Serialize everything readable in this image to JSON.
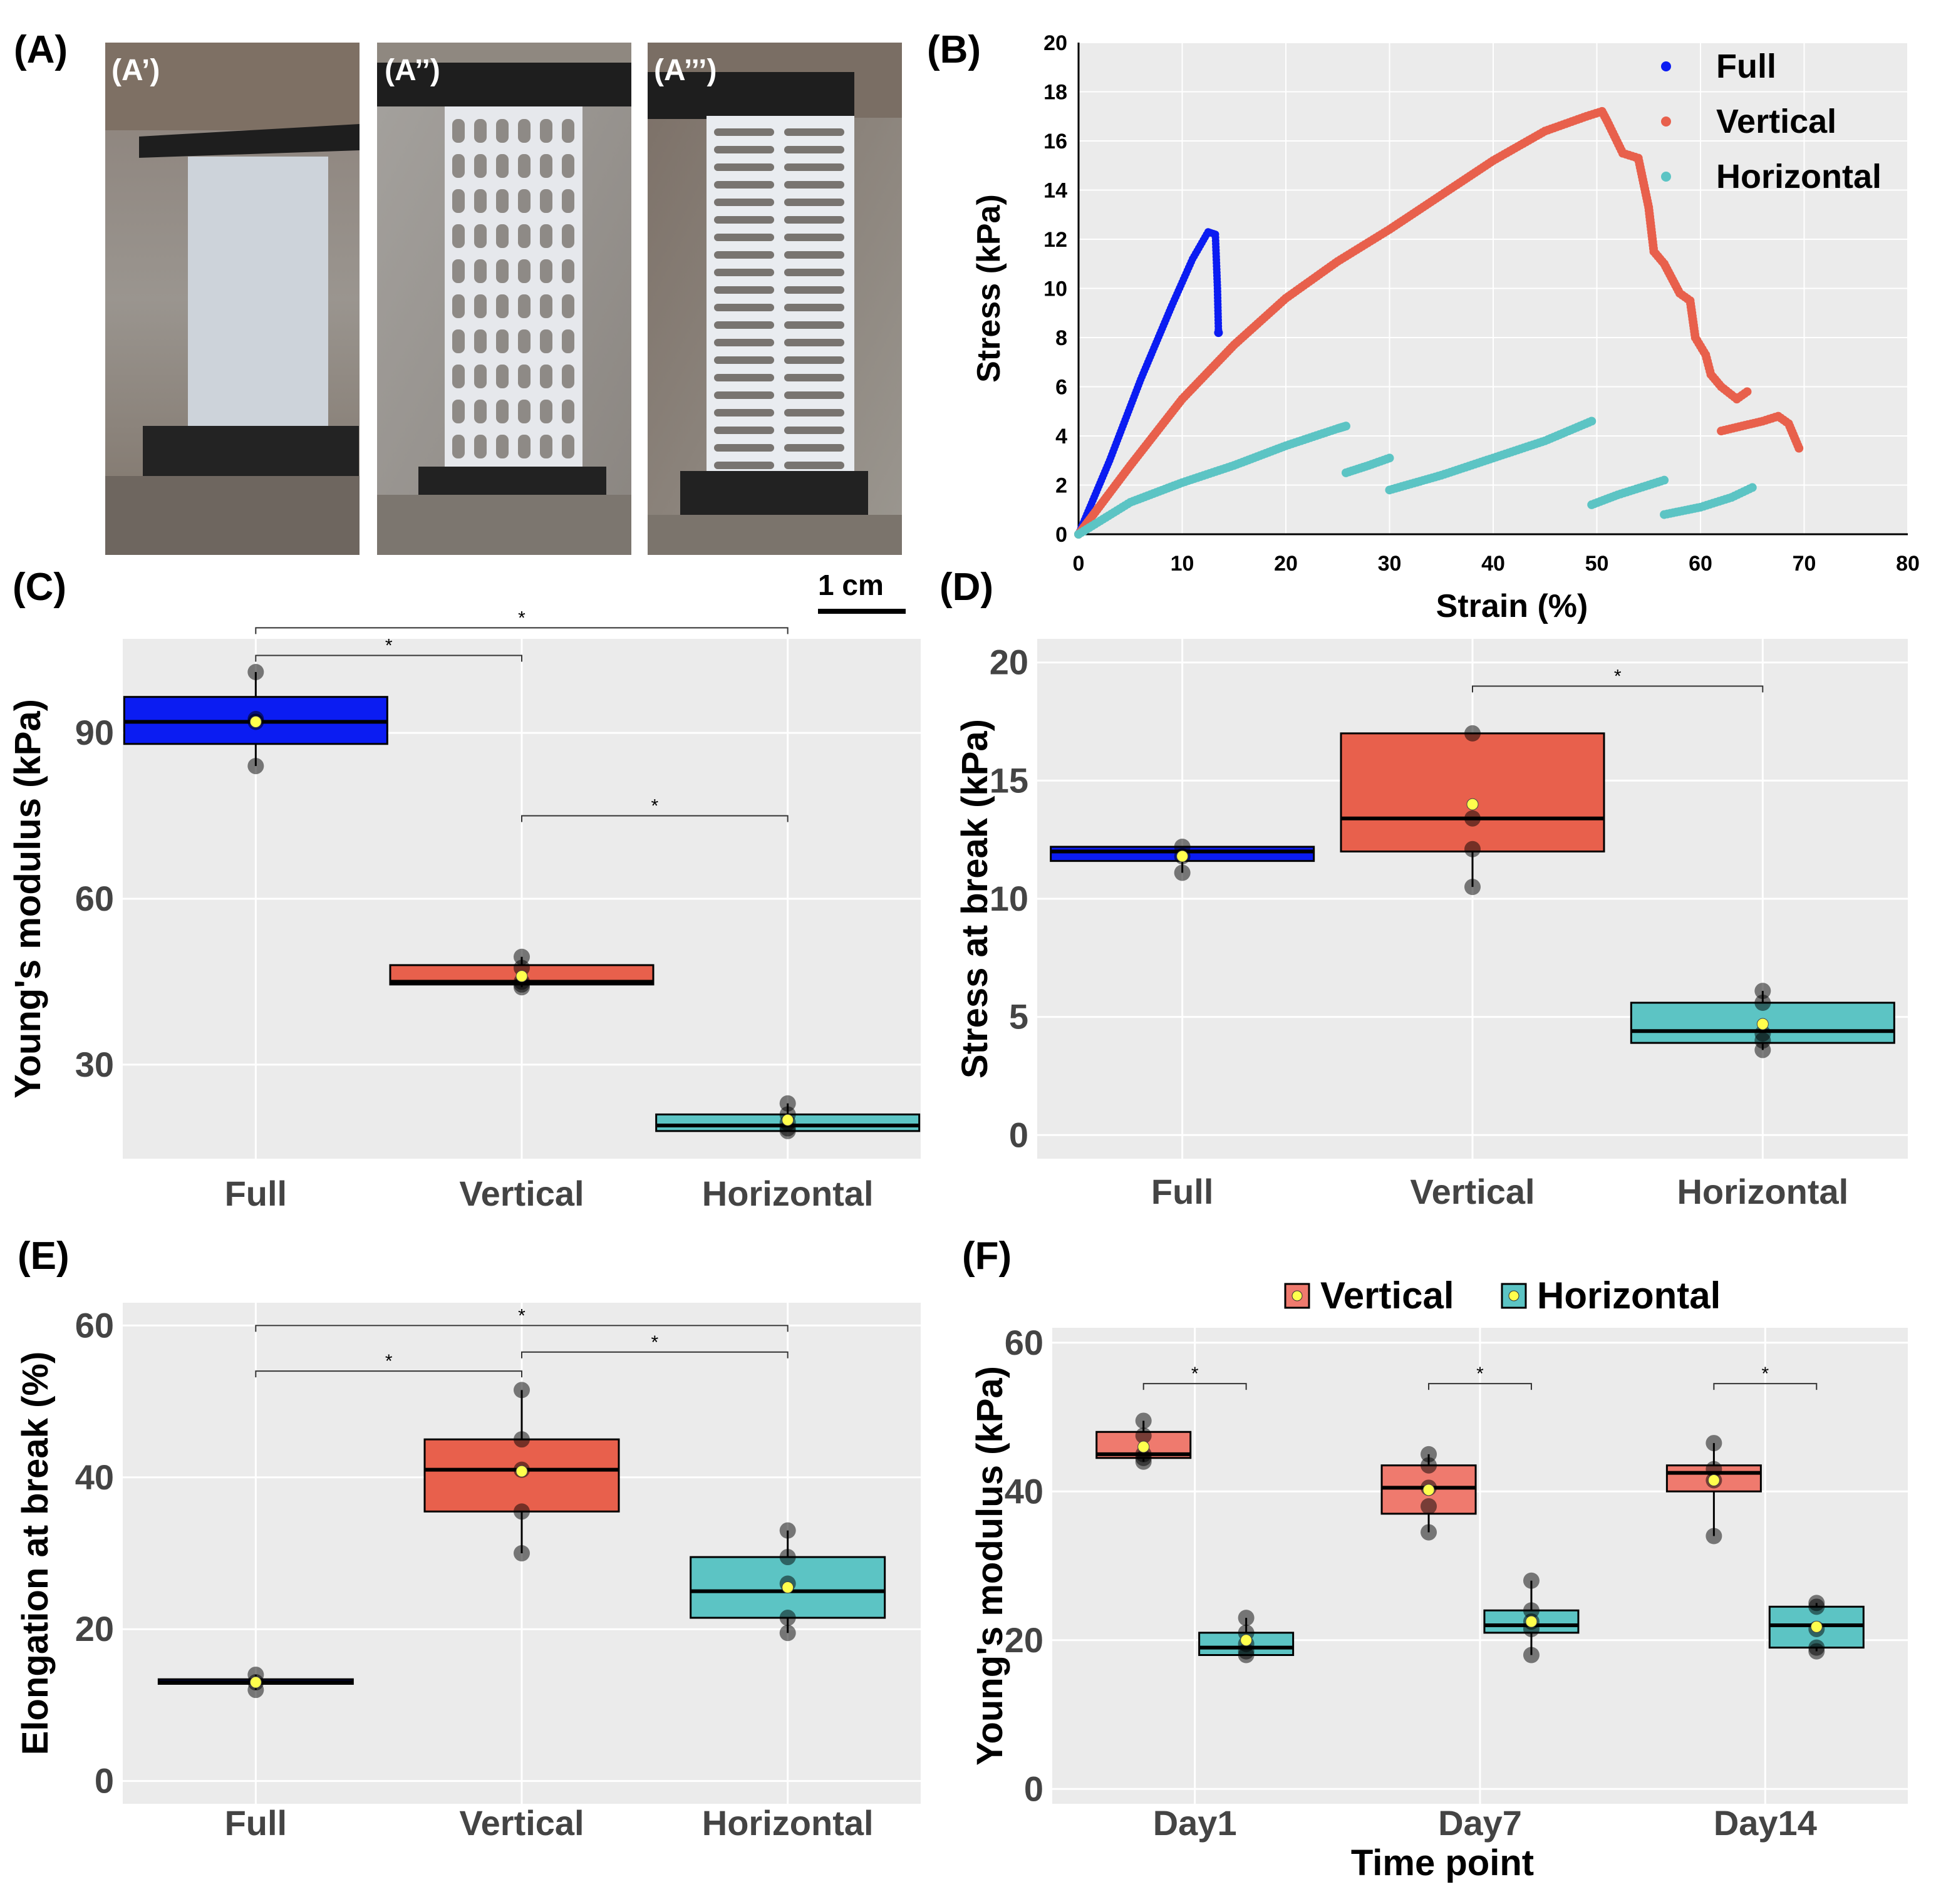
{
  "panel_labels": {
    "A": "(A)",
    "B": "(B)",
    "C": "(C)",
    "D": "(D)",
    "E": "(E)",
    "F": "(F)"
  },
  "photos": {
    "labels": [
      "(A’)",
      "(A’’)",
      "(A’’’)"
    ],
    "scale_bar": "1 cm"
  },
  "colors": {
    "full": "#0b1cf2",
    "vertical": "#e8604c",
    "horizontal": "#5cc4c4",
    "vertical_f": "#ef7a6e",
    "panel_bg": "#ebebeb",
    "grid": "#ffffff"
  },
  "chart_data": [
    {
      "id": "B",
      "type": "scatter",
      "xlabel": "Strain (%)",
      "ylabel": "Stress (kPa)",
      "xlim": [
        0,
        80
      ],
      "ylim": [
        0,
        20
      ],
      "xticks": [
        "0",
        "10",
        "20",
        "30",
        "40",
        "50",
        "60",
        "70",
        "80"
      ],
      "yticks": [
        "0",
        "2",
        "4",
        "6",
        "8",
        "10",
        "12",
        "14",
        "16",
        "18",
        "20"
      ],
      "legend": [
        "Full",
        "Vertical",
        "Horizontal"
      ],
      "series": [
        {
          "name": "Full",
          "segments": [
            [
              [
                0,
                0
              ],
              [
                3,
                3
              ],
              [
                6,
                6.3
              ],
              [
                9,
                9.3
              ],
              [
                11,
                11.2
              ],
              [
                12.5,
                12.3
              ],
              [
                13.2,
                12.2
              ],
              [
                13.4,
                10
              ],
              [
                13.5,
                8.2
              ]
            ]
          ]
        },
        {
          "name": "Vertical",
          "segments": [
            [
              [
                0,
                0
              ],
              [
                5,
                2.8
              ],
              [
                10,
                5.5
              ],
              [
                15,
                7.7
              ],
              [
                20,
                9.6
              ],
              [
                25,
                11.1
              ],
              [
                30,
                12.4
              ],
              [
                35,
                13.8
              ],
              [
                40,
                15.2
              ],
              [
                45,
                16.4
              ],
              [
                49,
                17.0
              ],
              [
                50.5,
                17.2
              ],
              [
                51,
                16.8
              ],
              [
                52.5,
                15.5
              ],
              [
                54,
                15.3
              ],
              [
                55,
                13.3
              ],
              [
                55.5,
                11.5
              ],
              [
                56.5,
                11
              ],
              [
                58,
                9.8
              ],
              [
                59,
                9.5
              ],
              [
                59.5,
                8
              ],
              [
                60.5,
                7.3
              ],
              [
                61,
                6.5
              ],
              [
                62,
                6
              ],
              [
                63.5,
                5.5
              ],
              [
                64.5,
                5.8
              ]
            ],
            [
              [
                62,
                4.2
              ],
              [
                64,
                4.4
              ],
              [
                66,
                4.6
              ],
              [
                67.5,
                4.8
              ],
              [
                68.5,
                4.5
              ],
              [
                69.5,
                3.5
              ]
            ]
          ]
        },
        {
          "name": "Horizontal",
          "segments": [
            [
              [
                0,
                0
              ],
              [
                5,
                1.3
              ],
              [
                10,
                2.1
              ],
              [
                15,
                2.8
              ],
              [
                20,
                3.6
              ],
              [
                25,
                4.3
              ],
              [
                25.8,
                4.4
              ]
            ],
            [
              [
                25.8,
                2.5
              ],
              [
                28,
                2.8
              ],
              [
                30,
                3.1
              ]
            ],
            [
              [
                30,
                1.8
              ],
              [
                35,
                2.4
              ],
              [
                40,
                3.1
              ],
              [
                45,
                3.8
              ],
              [
                49.5,
                4.6
              ]
            ],
            [
              [
                49.5,
                1.2
              ],
              [
                52,
                1.6
              ],
              [
                55,
                2.0
              ],
              [
                56.5,
                2.2
              ]
            ],
            [
              [
                56.5,
                0.8
              ],
              [
                60,
                1.1
              ],
              [
                63,
                1.5
              ],
              [
                65,
                1.9
              ]
            ]
          ]
        }
      ]
    },
    {
      "id": "C",
      "type": "box",
      "ylabel": "Young's modulus (kPa)",
      "ylim": [
        13,
        107
      ],
      "yticks": [
        "30",
        "60",
        "90"
      ],
      "categories": [
        "Full",
        "Vertical",
        "Horizontal"
      ],
      "boxes": [
        {
          "q1": 88,
          "median": 92,
          "q3": 96.5,
          "min": 84,
          "max": 101,
          "mean": 92,
          "points": [
            84,
            92,
            92.5,
            101
          ]
        },
        {
          "q1": 44.5,
          "median": 45,
          "q3": 48,
          "min": 44,
          "max": 49.5,
          "mean": 46,
          "points": [
            44,
            44.5,
            45,
            47.5,
            49.5
          ]
        },
        {
          "q1": 18,
          "median": 19,
          "q3": 21,
          "min": 18,
          "max": 23,
          "mean": 20,
          "points": [
            18,
            18.5,
            19.5,
            21,
            23
          ]
        }
      ],
      "significance": [
        {
          "from": 0,
          "to": 1,
          "y": 104,
          "label": "*"
        },
        {
          "from": 0,
          "to": 2,
          "y": 109,
          "label": "*"
        },
        {
          "from": 1,
          "to": 2,
          "y": 75,
          "label": "*"
        }
      ]
    },
    {
      "id": "D",
      "type": "box",
      "ylabel": "Stress at break (kPa)",
      "ylim": [
        -1,
        21
      ],
      "yticks": [
        "0",
        "5",
        "10",
        "15",
        "20"
      ],
      "categories": [
        "Full",
        "Vertical",
        "Horizontal"
      ],
      "boxes": [
        {
          "q1": 11.6,
          "median": 12,
          "q3": 12.2,
          "min": 11.1,
          "max": 12.2,
          "mean": 11.8,
          "points": [
            11.1,
            11.8,
            12.2
          ]
        },
        {
          "q1": 12,
          "median": 13.4,
          "q3": 17,
          "min": 10.5,
          "max": 17,
          "mean": 14,
          "points": [
            10.5,
            12.1,
            13.4,
            17
          ]
        },
        {
          "q1": 3.9,
          "median": 4.4,
          "q3": 5.6,
          "min": 3.6,
          "max": 6.1,
          "mean": 4.7,
          "points": [
            3.6,
            4.0,
            4.3,
            5.6,
            6.1
          ]
        }
      ],
      "significance": [
        {
          "from": 1,
          "to": 2,
          "y": 19,
          "label": "*"
        }
      ]
    },
    {
      "id": "E",
      "type": "box",
      "ylabel": "Elongation at break (%)",
      "ylim": [
        -3,
        63
      ],
      "yticks": [
        "0",
        "20",
        "40",
        "60"
      ],
      "categories": [
        "Full",
        "Vertical",
        "Horizontal"
      ],
      "boxes": [
        {
          "q1": 12.8,
          "median": 13,
          "q3": 13.4,
          "min": 12,
          "max": 14,
          "mean": 13,
          "points": [
            12,
            13,
            14
          ]
        },
        {
          "q1": 35.5,
          "median": 41,
          "q3": 45,
          "min": 30,
          "max": 51.5,
          "mean": 40.8,
          "points": [
            30,
            35.5,
            41,
            45,
            51.5
          ]
        },
        {
          "q1": 21.5,
          "median": 25,
          "q3": 29.5,
          "min": 19.5,
          "max": 33,
          "mean": 25.5,
          "points": [
            19.5,
            21.5,
            26,
            29.5,
            33
          ]
        }
      ],
      "significance": [
        {
          "from": 0,
          "to": 1,
          "y": 54,
          "label": "*"
        },
        {
          "from": 0,
          "to": 2,
          "y": 60,
          "label": "*"
        },
        {
          "from": 1,
          "to": 2,
          "y": 56.5,
          "label": "*"
        }
      ]
    },
    {
      "id": "F",
      "type": "box",
      "xlabel": "Time point",
      "ylabel": "Young's modulus (kPa)",
      "ylim": [
        -2,
        62
      ],
      "yticks": [
        "0",
        "20",
        "40",
        "60"
      ],
      "categories": [
        "Day1",
        "Day7",
        "Day14"
      ],
      "legend": [
        "Vertical",
        "Horizontal"
      ],
      "groups": [
        {
          "vertical": {
            "q1": 44.5,
            "median": 45,
            "q3": 48,
            "min": 44,
            "max": 49.5,
            "mean": 46,
            "points": [
              44,
              44.5,
              45,
              47.5,
              49.5
            ]
          },
          "horizontal": {
            "q1": 18,
            "median": 19,
            "q3": 21,
            "min": 18,
            "max": 23,
            "mean": 20,
            "points": [
              18,
              18.5,
              19.5,
              21,
              23
            ]
          }
        },
        {
          "vertical": {
            "q1": 37,
            "median": 40.5,
            "q3": 43.5,
            "min": 34.5,
            "max": 45,
            "mean": 40.2,
            "points": [
              34.5,
              38,
              40.5,
              43.5,
              45
            ]
          },
          "horizontal": {
            "q1": 21,
            "median": 22,
            "q3": 24,
            "min": 18,
            "max": 28,
            "mean": 22.5,
            "points": [
              18,
              21.5,
              22.5,
              24,
              28
            ]
          }
        },
        {
          "vertical": {
            "q1": 40,
            "median": 42.5,
            "q3": 43.5,
            "min": 34,
            "max": 46.5,
            "mean": 41.5,
            "points": [
              34,
              41.5,
              43,
              46.5
            ]
          },
          "horizontal": {
            "q1": 19,
            "median": 22,
            "q3": 24.5,
            "min": 18.5,
            "max": 25,
            "mean": 21.8,
            "points": [
              18.5,
              19,
              21.5,
              24.5,
              25
            ]
          }
        }
      ],
      "significance": [
        {
          "group": 0,
          "y": 54.5,
          "label": "*"
        },
        {
          "group": 1,
          "y": 54.5,
          "label": "*"
        },
        {
          "group": 2,
          "y": 54.5,
          "label": "*"
        }
      ]
    }
  ]
}
